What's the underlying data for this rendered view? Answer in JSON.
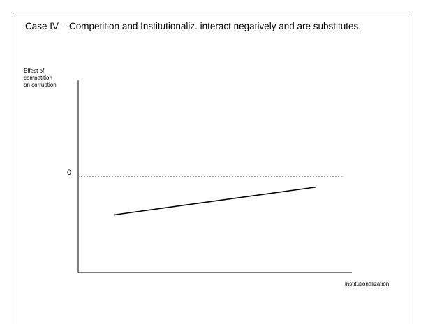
{
  "slide": {
    "title": "Case IV – Competition and Institutionaliz. interact negatively and are substitutes."
  },
  "chart_data": {
    "type": "line",
    "title": "Case IV – Competition and Institutionaliz. interact negatively and are substitutes.",
    "xlabel": "institutionalization",
    "ylabel": "Effect of\ncompetition\non corruption",
    "ylim": [
      -1,
      1
    ],
    "xlim": [
      0,
      1
    ],
    "reference_line": {
      "y": 0,
      "label": "0",
      "style": "dotted"
    },
    "y_ticks_shown": [
      "0"
    ],
    "grid": false,
    "series": [
      {
        "x": [
          0.13,
          0.87
        ],
        "y": [
          -0.4,
          -0.11
        ]
      }
    ],
    "colors": {
      "axis": "#000000",
      "line": "#000000",
      "reference": "#888888"
    }
  }
}
